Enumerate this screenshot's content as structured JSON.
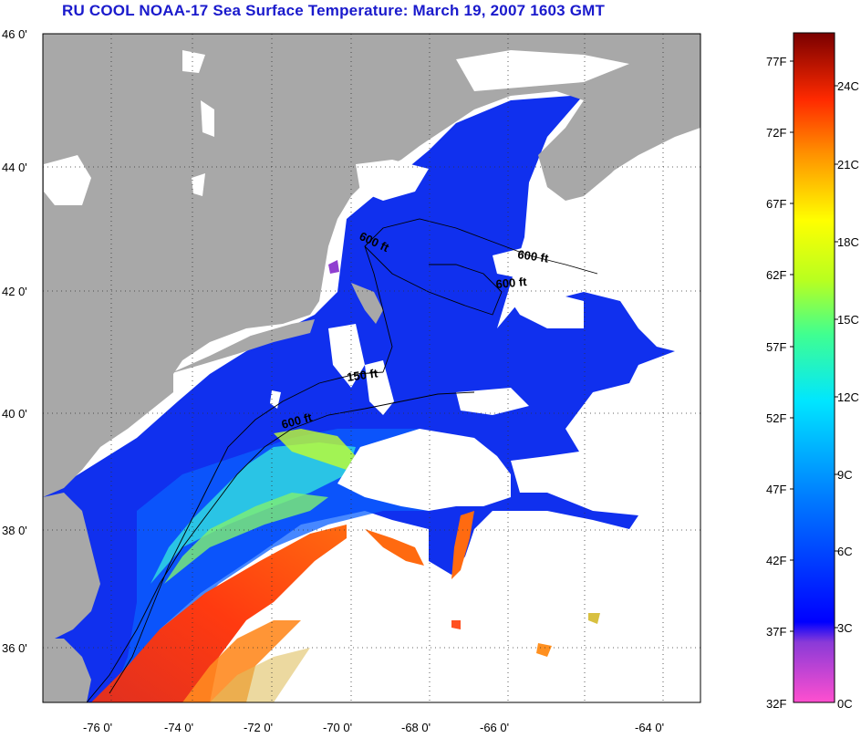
{
  "title": "RU COOL  NOAA-17  Sea Surface Temperature:  March 19, 2007 1603 GMT",
  "colors": {
    "land": "#a8a8a8",
    "cloud": "#ffffff",
    "title": "#1a1acc"
  },
  "map": {
    "lat_ticks": [
      "46 0'",
      "44 0'",
      "42 0'",
      "40 0'",
      "38 0'",
      "36 0'"
    ],
    "lon_ticks": [
      "-76 0'",
      "-74 0'",
      "-72 0'",
      "-70 0'",
      "-68 0'",
      "-66 0'",
      "-64 0'"
    ],
    "contour_labels": [
      "600 ft",
      "600 ft",
      "600 ft",
      "150 ft",
      "600 ft"
    ]
  },
  "colorbar": {
    "fahrenheit": [
      "77F",
      "72F",
      "67F",
      "62F",
      "57F",
      "52F",
      "47F",
      "42F",
      "37F",
      "32F"
    ],
    "celsius": [
      "24C",
      "21C",
      "18C",
      "15C",
      "12C",
      "9C",
      "6C",
      "3C",
      "0C"
    ]
  }
}
